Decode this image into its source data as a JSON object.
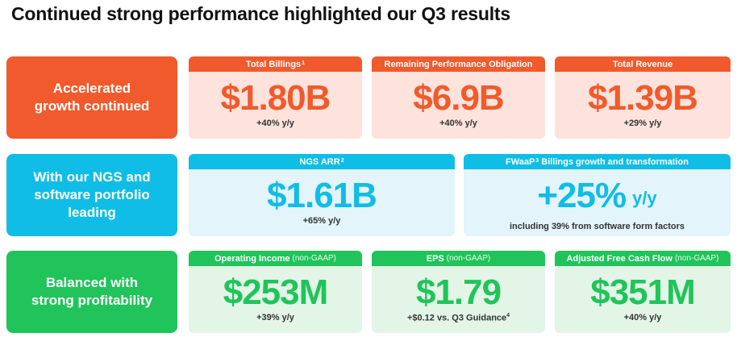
{
  "title": "Continued strong performance highlighted our Q3 results",
  "colors": {
    "orange": "#f15a2c",
    "cyan": "#10bde6",
    "green": "#20c45a"
  },
  "rows": [
    {
      "label": "Accelerated\ngrowth continued",
      "cards": [
        {
          "header": "Total Billings",
          "sup": "1",
          "value": "$1.80B",
          "sub": "+40% y/y"
        },
        {
          "header": "Remaining Performance Obligation",
          "value": "$6.9B",
          "sub": "+40% y/y"
        },
        {
          "header": "Total Revenue",
          "value": "$1.39B",
          "sub": "+29% y/y"
        }
      ]
    },
    {
      "label": "With our NGS and\nsoftware portfolio\nleading",
      "cards": [
        {
          "header": "NGS ARR",
          "sup": "2",
          "value": "$1.61B",
          "sub": "+65% y/y"
        },
        {
          "header_pre": "FWaaP",
          "header_sup": "3",
          "header_post": " Billings growth and transformation",
          "value": "+25%",
          "unit": "y/y",
          "sub": "including 39% from software form factors"
        }
      ]
    },
    {
      "label": "Balanced with\nstrong profitability",
      "cards": [
        {
          "header": "Operating Income",
          "qualifier": "(non-GAAP)",
          "value": "$253M",
          "sub": "+39% y/y"
        },
        {
          "header": "EPS",
          "qualifier": "(non-GAAP)",
          "value": "$1.79",
          "sub": "+$0.12 vs. Q3 Guidance",
          "sub_sup": "4"
        },
        {
          "header": "Adjusted Free Cash Flow",
          "qualifier": "(non-GAAP)",
          "value": "$351M",
          "sub": "+40% y/y"
        }
      ]
    }
  ]
}
